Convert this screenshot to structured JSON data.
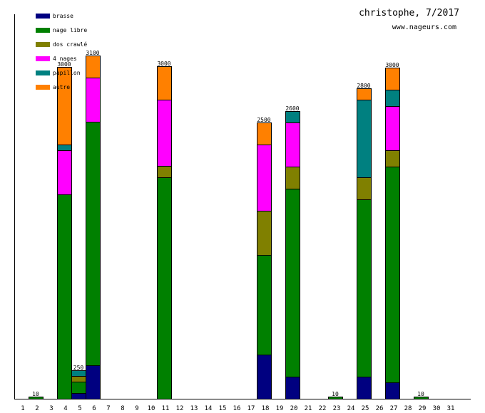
{
  "chart_data": {
    "type": "bar",
    "stacked": true,
    "title": "christophe, 7/2017",
    "subtitle": "www.nageurs.com",
    "xlabel": "",
    "ylabel": "",
    "ylim": [
      0,
      3500
    ],
    "grid": false,
    "legend_position": "top-left",
    "categories": [
      "1",
      "2",
      "3",
      "4",
      "5",
      "6",
      "7",
      "8",
      "9",
      "10",
      "11",
      "12",
      "13",
      "14",
      "15",
      "16",
      "17",
      "18",
      "19",
      "20",
      "21",
      "22",
      "23",
      "24",
      "25",
      "26",
      "27",
      "28",
      "29",
      "30",
      "31"
    ],
    "series": [
      {
        "name": "brasse",
        "color": "#000080",
        "values": [
          0,
          0,
          0,
          0,
          50,
          300,
          0,
          0,
          0,
          0,
          0,
          0,
          0,
          0,
          0,
          0,
          0,
          400,
          0,
          200,
          0,
          0,
          0,
          0,
          200,
          0,
          150,
          0,
          0,
          0,
          0
        ]
      },
      {
        "name": "nage libre",
        "color": "#008000",
        "values": [
          0,
          10,
          0,
          1850,
          100,
          2200,
          0,
          0,
          0,
          0,
          2000,
          0,
          0,
          0,
          0,
          0,
          0,
          900,
          0,
          1700,
          0,
          0,
          10,
          0,
          1600,
          0,
          1950,
          0,
          10,
          0,
          0
        ]
      },
      {
        "name": "dos crawlé",
        "color": "#808000",
        "values": [
          0,
          0,
          0,
          0,
          50,
          0,
          0,
          0,
          0,
          0,
          100,
          0,
          0,
          0,
          0,
          0,
          0,
          400,
          0,
          200,
          0,
          0,
          0,
          0,
          200,
          0,
          150,
          0,
          0,
          0,
          0
        ]
      },
      {
        "name": "4 nages",
        "color": "#ff00ff",
        "values": [
          0,
          0,
          0,
          400,
          0,
          400,
          0,
          0,
          0,
          0,
          600,
          0,
          0,
          0,
          0,
          0,
          0,
          600,
          0,
          400,
          0,
          0,
          0,
          0,
          0,
          0,
          400,
          0,
          0,
          0,
          0
        ]
      },
      {
        "name": "papillon",
        "color": "#008080",
        "values": [
          0,
          0,
          0,
          50,
          50,
          0,
          0,
          0,
          0,
          0,
          0,
          0,
          0,
          0,
          0,
          0,
          0,
          0,
          0,
          100,
          0,
          0,
          0,
          0,
          700,
          0,
          150,
          0,
          0,
          0,
          0
        ]
      },
      {
        "name": "autre",
        "color": "#ff8000",
        "values": [
          0,
          0,
          0,
          700,
          0,
          200,
          0,
          0,
          0,
          0,
          300,
          0,
          0,
          0,
          0,
          0,
          0,
          200,
          0,
          0,
          0,
          0,
          0,
          0,
          100,
          0,
          200,
          0,
          0,
          0,
          0
        ]
      }
    ],
    "totals": [
      0,
      10,
      0,
      3000,
      250,
      3100,
      0,
      0,
      0,
      0,
      3000,
      0,
      0,
      0,
      0,
      0,
      0,
      2500,
      0,
      2600,
      0,
      0,
      10,
      0,
      2800,
      0,
      3000,
      0,
      10,
      0,
      0
    ]
  }
}
